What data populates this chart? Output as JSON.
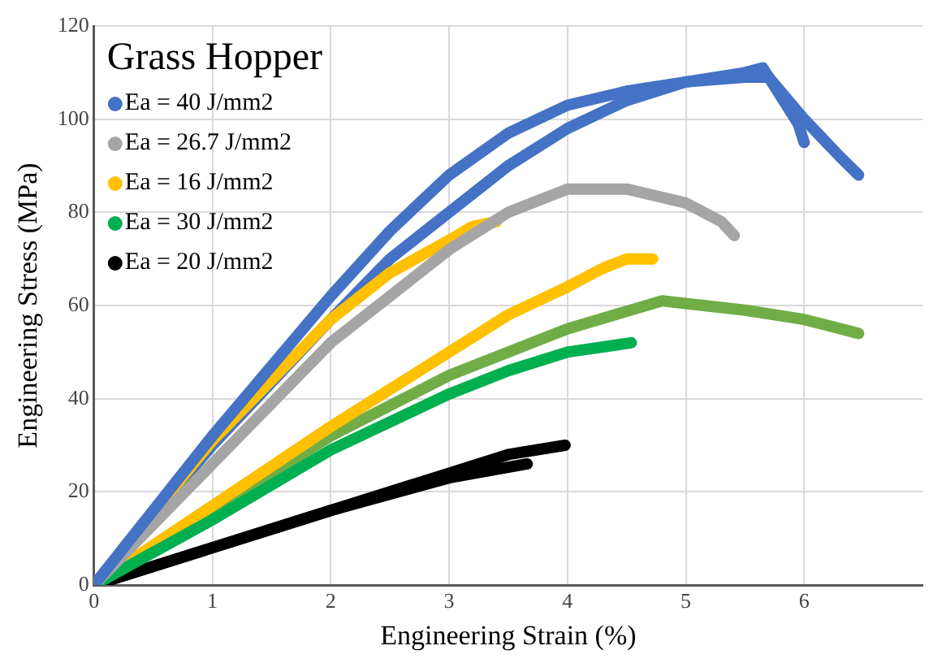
{
  "chart_data": {
    "type": "line",
    "xlabel": "Engineering Strain (%)",
    "ylabel": "Engineering Stress (MPa)",
    "legend_title": "Grass Hopper",
    "xlim": [
      0,
      7
    ],
    "xticks": [
      0,
      1,
      2,
      3,
      4,
      5,
      6
    ],
    "ylim": [
      0,
      120
    ],
    "yticks": [
      0,
      20,
      40,
      60,
      80,
      100,
      120
    ],
    "grid": true,
    "legend": "top left",
    "marker": "none",
    "line_style": "solid",
    "series": [
      {
        "name": "Ea = 40 J/mm2",
        "color": "#4472c4",
        "x": [
          0,
          1,
          2,
          2.5,
          3,
          3.5,
          4,
          4.5,
          5,
          5.5,
          5.7,
          6.0,
          6.3,
          6.46
        ],
        "values": [
          0,
          32,
          62,
          76,
          88,
          97,
          103,
          106,
          108,
          109,
          109,
          100,
          92,
          88
        ]
      },
      {
        "name": "Ea = 26.7 J/mm2",
        "color": "#a5a5a5",
        "x": [
          0,
          1,
          2,
          3,
          3.5,
          4,
          4.5,
          5,
          5.3,
          5.41
        ],
        "values": [
          0,
          26,
          52,
          72,
          80,
          85,
          85,
          82,
          78,
          75
        ]
      },
      {
        "name": "Ea = 16 J/mm2",
        "color": "#ffc000",
        "x": [
          0,
          1,
          2,
          2.5,
          3,
          3.2,
          3.4
        ],
        "values": [
          0,
          31,
          57,
          67,
          74,
          77,
          78
        ]
      },
      {
        "name": "Ea = 30 J/mm2",
        "color": "#00b050",
        "x": [
          0,
          1,
          2,
          3,
          3.5,
          4,
          4.54
        ],
        "values": [
          0,
          14,
          29,
          41,
          46,
          50,
          52
        ]
      },
      {
        "name": "Ea = 20 J/mm2",
        "color": "#000000",
        "x": [
          0,
          1,
          2,
          3,
          3.5,
          3.98
        ],
        "values": [
          0,
          8,
          16,
          24,
          28,
          30
        ]
      },
      {
        "color": "#4472c4",
        "x": [
          0,
          1,
          2,
          2.5,
          3,
          3.5,
          4,
          4.5,
          5,
          5.5,
          5.65,
          5.8,
          5.95,
          6.0
        ],
        "values": [
          0,
          30,
          57,
          70,
          80,
          90,
          98,
          104,
          108,
          110,
          111,
          105,
          99,
          95
        ]
      },
      {
        "color": "#ffc000",
        "x": [
          0,
          1,
          2,
          3,
          3.5,
          4,
          4.3,
          4.5,
          4.72
        ],
        "values": [
          0,
          17,
          34,
          50,
          58,
          64,
          68,
          70,
          70
        ]
      },
      {
        "color": "#70ad47",
        "x": [
          0,
          1,
          2,
          3,
          4,
          4.8,
          5.5,
          6,
          6.46
        ],
        "values": [
          0,
          16,
          32,
          45,
          55,
          61,
          59,
          57,
          54
        ]
      },
      {
        "color": "#000000",
        "x": [
          0,
          1,
          2,
          3,
          3.66
        ],
        "values": [
          0,
          8,
          16,
          23,
          26
        ]
      }
    ]
  }
}
